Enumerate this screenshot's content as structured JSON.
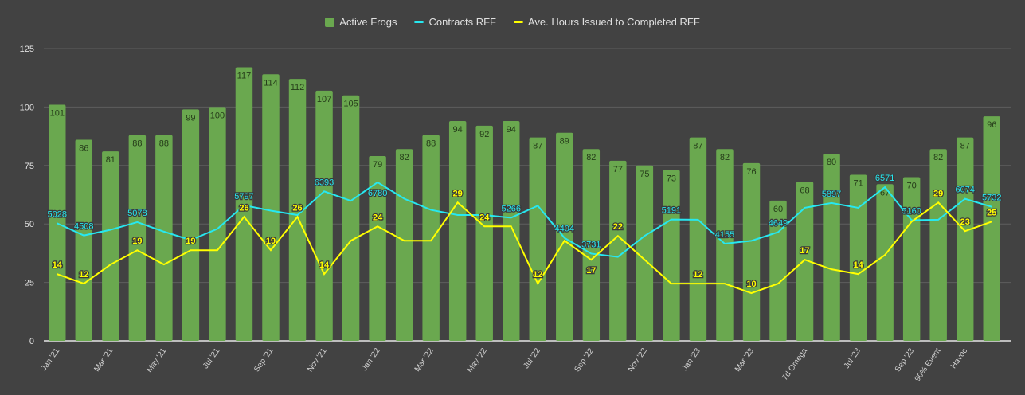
{
  "chart_data": {
    "type": "bar",
    "title": "",
    "xlabel": "",
    "ylabel": "",
    "ylim": [
      0,
      125
    ],
    "yticks": [
      0,
      25,
      50,
      75,
      100,
      125
    ],
    "grid": true,
    "legend_position": "top-center",
    "categories": [
      "Jan '21",
      "",
      "Mar '21",
      "",
      "May '21",
      "",
      "Jul '21",
      "",
      "Sep '21",
      "",
      "Nov '21",
      "",
      "Jan '22",
      "",
      "Mar '22",
      "",
      "May '22",
      "",
      "Jul '22",
      "",
      "Sep '22",
      "",
      "Nov '22",
      "",
      "Jan '23",
      "",
      "Mar '23",
      "",
      "7d Omega",
      "",
      "Jul '23",
      "",
      "Sep '23",
      "90% Event",
      "Havoc",
      ""
    ],
    "series": [
      {
        "name": "Active Frogs",
        "type": "bar",
        "color": "#6aa84f",
        "values": [
          101,
          86,
          81,
          88,
          88,
          99,
          100,
          117,
          114,
          112,
          107,
          105,
          79,
          82,
          88,
          94,
          92,
          94,
          87,
          89,
          82,
          77,
          75,
          73,
          87,
          82,
          76,
          60,
          68,
          80,
          71,
          67,
          70,
          82,
          87,
          96
        ]
      },
      {
        "name": "Contracts RFF",
        "type": "line",
        "color": "#27e8f0",
        "plot_scale": 0.01,
        "values": [
          5028,
          4508,
          4750,
          5078,
          4670,
          4310,
          4790,
          5797,
          5570,
          5380,
          6393,
          5990,
          6780,
          6080,
          5600,
          5380,
          5380,
          5266,
          5780,
          4404,
          3731,
          3590,
          4490,
          5191,
          5180,
          4155,
          4280,
          4649,
          5690,
          5897,
          5690,
          6571,
          5160,
          5180,
          6074,
          5732
        ],
        "labeled": [
          0,
          1,
          3,
          7,
          10,
          12,
          17,
          19,
          20,
          23,
          25,
          27,
          29,
          31,
          32,
          34,
          35
        ]
      },
      {
        "name": "Ave. Hours Issued to Completed RFF",
        "type": "line",
        "color": "#ffff00",
        "plot_scale": 2.04,
        "values": [
          14,
          12,
          16,
          19,
          16,
          19,
          19,
          26,
          19,
          26,
          14,
          21,
          24,
          21,
          21,
          29,
          24,
          24,
          12,
          21,
          17,
          22,
          17,
          12,
          12,
          12,
          10,
          12,
          17,
          15,
          14,
          18,
          25,
          29,
          23,
          25
        ],
        "labeled": [
          0,
          1,
          3,
          5,
          7,
          8,
          9,
          10,
          12,
          15,
          16,
          18,
          20,
          21,
          24,
          26,
          28,
          30,
          33,
          34,
          35
        ]
      }
    ]
  }
}
